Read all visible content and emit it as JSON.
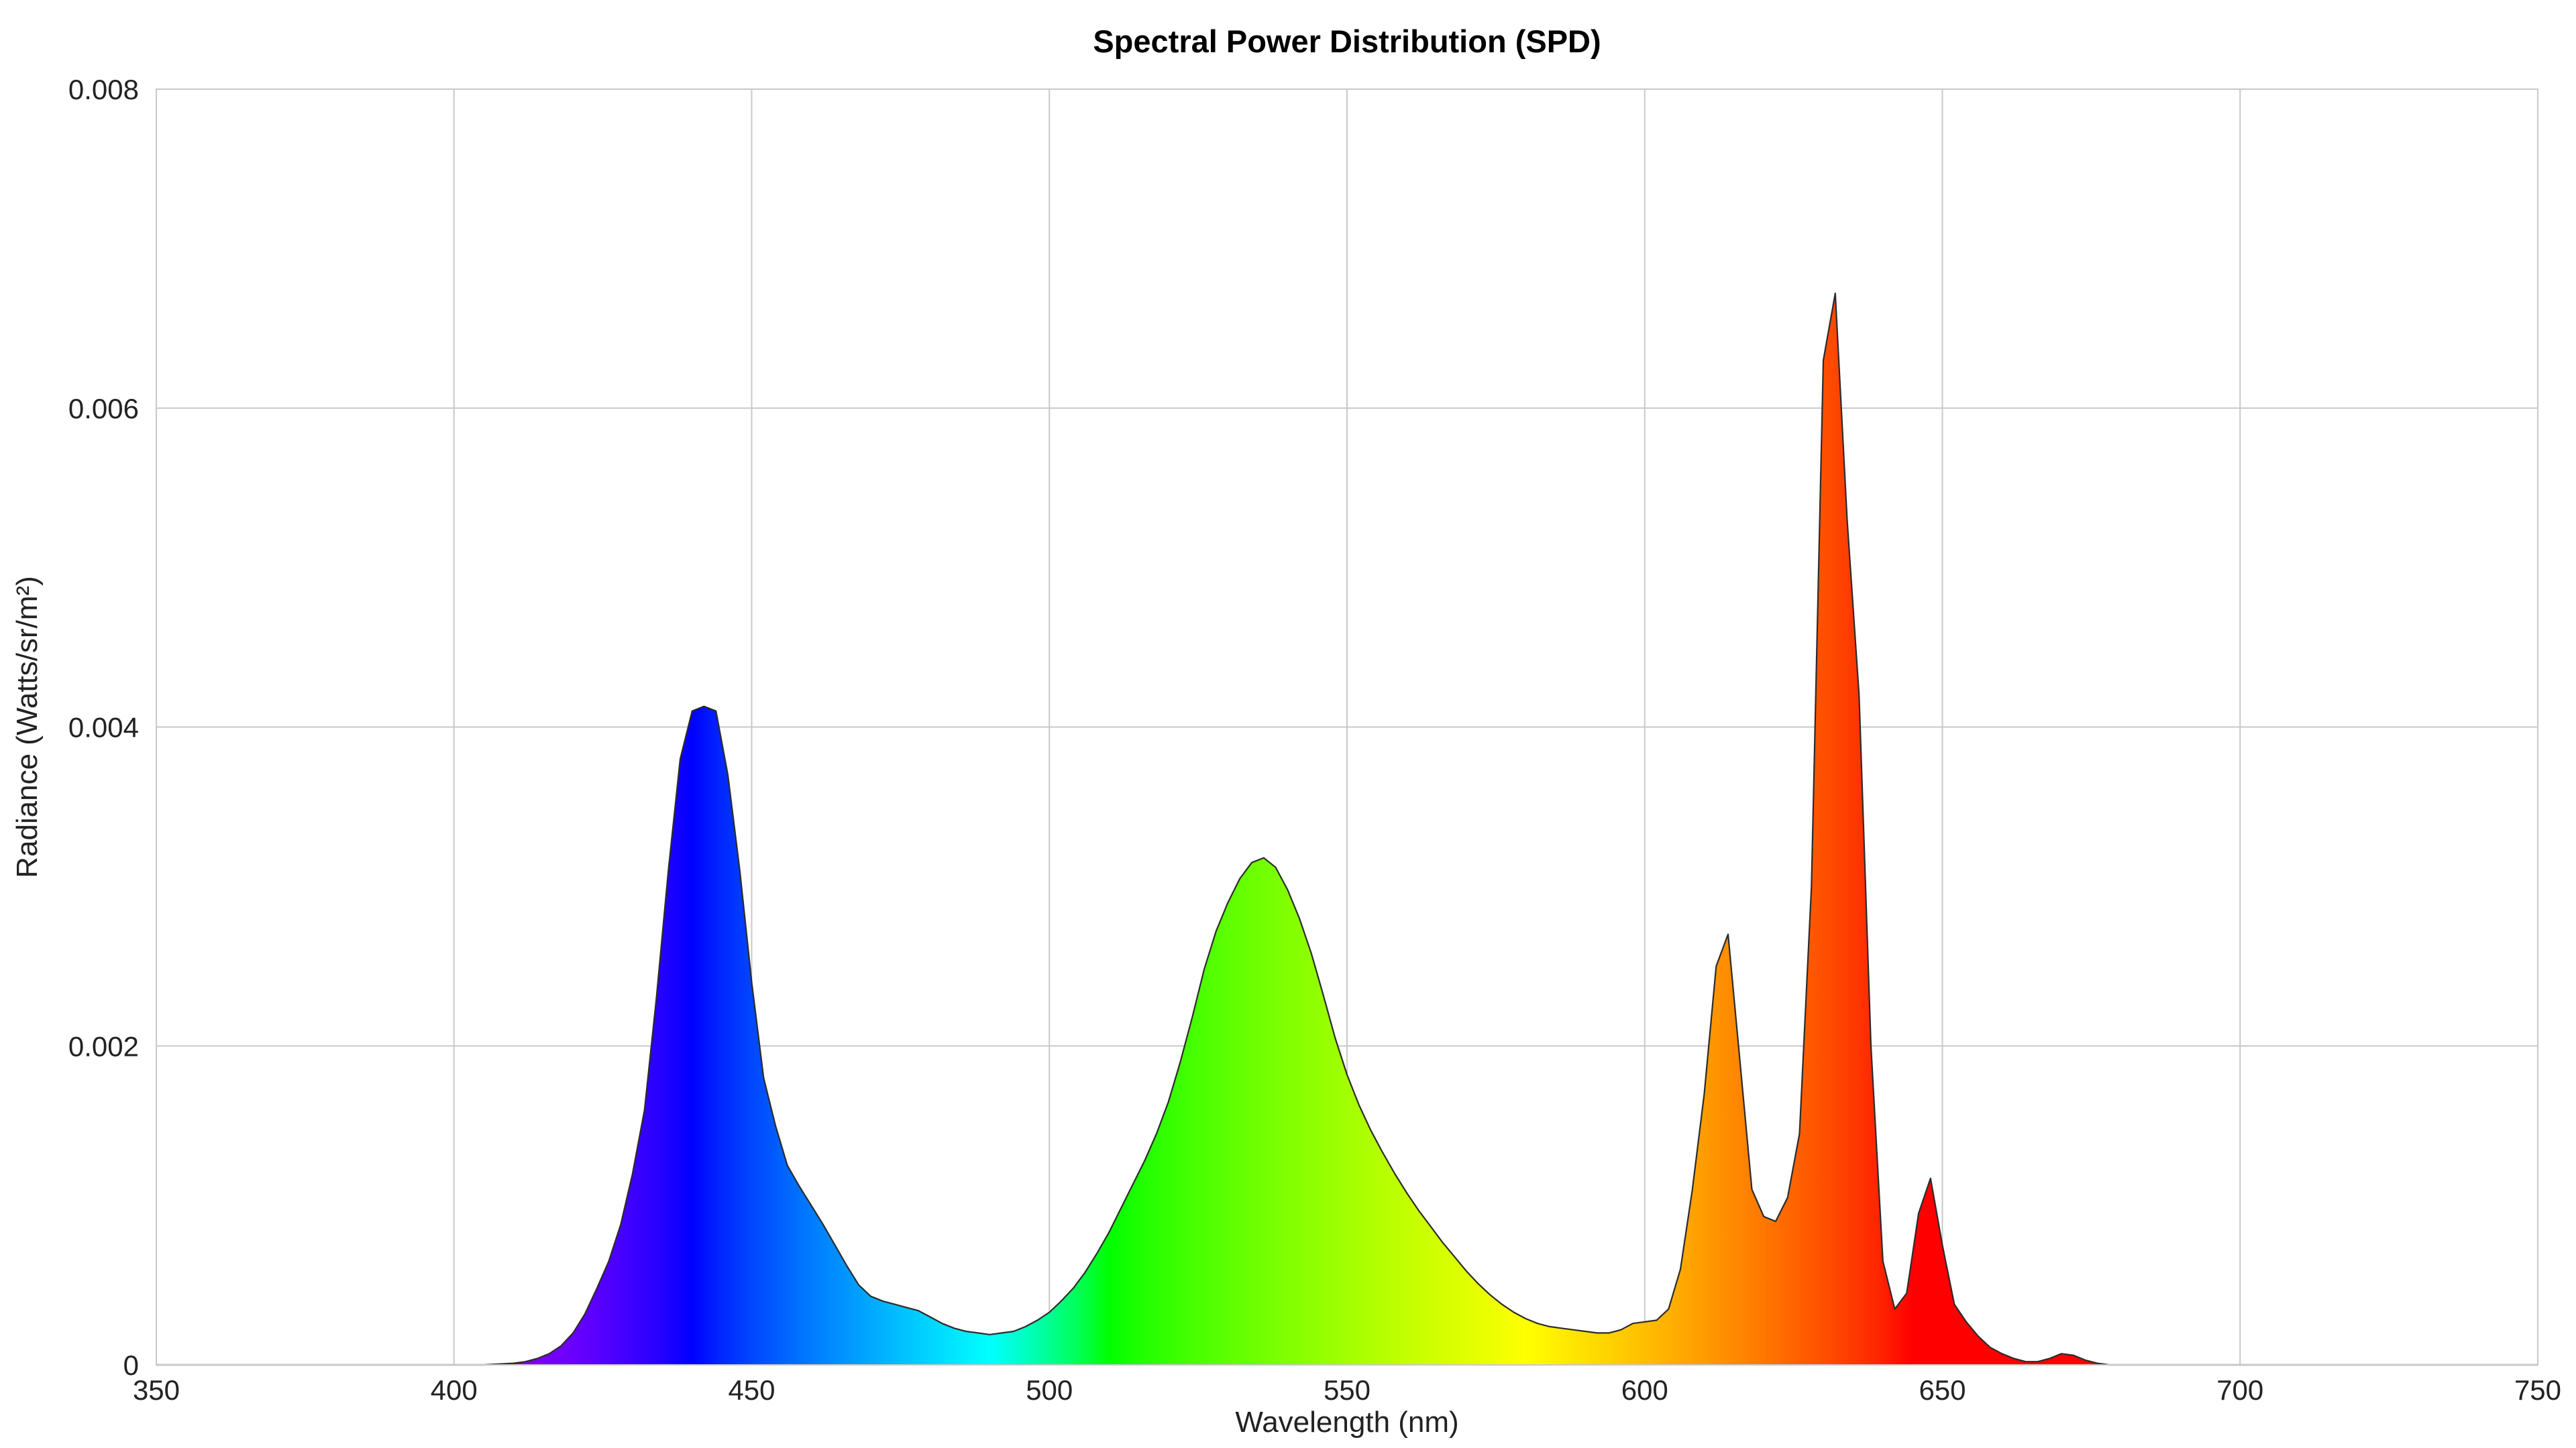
{
  "chart_data": {
    "type": "area",
    "title": "Spectral Power Distribution (SPD)",
    "xlabel": "Wavelength (nm)",
    "ylabel": "Radiance (Watts/sr/m²)",
    "xlim": [
      350,
      750
    ],
    "ylim": [
      0,
      0.008
    ],
    "x_ticks": [
      350,
      400,
      450,
      500,
      550,
      600,
      650,
      700,
      750
    ],
    "x_tick_labels": [
      "350",
      "400",
      "450",
      "500",
      "550",
      "600",
      "650",
      "700",
      "750"
    ],
    "y_ticks": [
      0,
      0.002,
      0.004,
      0.006,
      0.008
    ],
    "y_tick_labels": [
      "0",
      "0.002",
      "0.004",
      "0.006",
      "0.008"
    ],
    "grid": true,
    "fill": "visible-spectrum gradient by wavelength",
    "series": [
      {
        "x": [
          350,
          400,
          405,
          410,
          412,
          414,
          416,
          418,
          420,
          422,
          424,
          426,
          428,
          430,
          432,
          434,
          436,
          438,
          440,
          442,
          444,
          446,
          448,
          450,
          452,
          454,
          456,
          458,
          460,
          462,
          464,
          466,
          468,
          470,
          472,
          474,
          476,
          478,
          480,
          482,
          484,
          486,
          488,
          490,
          492,
          494,
          496,
          498,
          500,
          502,
          504,
          506,
          508,
          510,
          512,
          514,
          516,
          518,
          520,
          522,
          524,
          526,
          528,
          530,
          532,
          534,
          536,
          538,
          540,
          542,
          544,
          546,
          548,
          550,
          552,
          554,
          556,
          558,
          560,
          562,
          564,
          566,
          568,
          570,
          572,
          574,
          576,
          578,
          580,
          582,
          584,
          586,
          588,
          590,
          592,
          594,
          596,
          598,
          600,
          602,
          604,
          606,
          608,
          610,
          612,
          614,
          616,
          618,
          620,
          622,
          624,
          626,
          628,
          630,
          632,
          634,
          636,
          638,
          640,
          642,
          644,
          646,
          648,
          650,
          652,
          654,
          656,
          658,
          660,
          662,
          664,
          666,
          668,
          670,
          672,
          674,
          676,
          678,
          680,
          700,
          750
        ],
        "y": [
          0,
          0,
          0,
          1e-05,
          2e-05,
          4e-05,
          7e-05,
          0.00012,
          0.0002,
          0.00032,
          0.00048,
          0.00065,
          0.00088,
          0.0012,
          0.0016,
          0.0023,
          0.0031,
          0.0038,
          0.0041,
          0.00413,
          0.0041,
          0.0037,
          0.0031,
          0.0024,
          0.0018,
          0.0015,
          0.00125,
          0.00112,
          0.001,
          0.00088,
          0.00075,
          0.00062,
          0.0005,
          0.00043,
          0.0004,
          0.00038,
          0.00036,
          0.00034,
          0.0003,
          0.00026,
          0.00023,
          0.00021,
          0.0002,
          0.00019,
          0.0002,
          0.00021,
          0.00024,
          0.00028,
          0.00033,
          0.0004,
          0.00048,
          0.00058,
          0.0007,
          0.00083,
          0.00098,
          0.00113,
          0.00128,
          0.00145,
          0.00165,
          0.0019,
          0.00218,
          0.00248,
          0.00272,
          0.0029,
          0.00305,
          0.00315,
          0.00318,
          0.00312,
          0.00298,
          0.0028,
          0.00258,
          0.00232,
          0.00205,
          0.00182,
          0.00163,
          0.00147,
          0.00133,
          0.0012,
          0.00108,
          0.00097,
          0.00087,
          0.00077,
          0.00068,
          0.00059,
          0.00051,
          0.00044,
          0.00038,
          0.00033,
          0.00029,
          0.00026,
          0.00024,
          0.00023,
          0.00022,
          0.00021,
          0.0002,
          0.0002,
          0.00022,
          0.00026,
          0.00027,
          0.00028,
          0.00035,
          0.0006,
          0.0011,
          0.0017,
          0.0025,
          0.0027,
          0.0019,
          0.0011,
          0.00093,
          0.0009,
          0.00105,
          0.00145,
          0.003,
          0.0063,
          0.00672,
          0.0053,
          0.0042,
          0.002,
          0.00065,
          0.00035,
          0.00045,
          0.00095,
          0.00117,
          0.00075,
          0.00038,
          0.00027,
          0.00018,
          0.00011,
          7e-05,
          4e-05,
          2e-05,
          2e-05,
          4e-05,
          7e-05,
          6e-05,
          3e-05,
          1e-05,
          0,
          0,
          0,
          0
        ]
      }
    ]
  }
}
